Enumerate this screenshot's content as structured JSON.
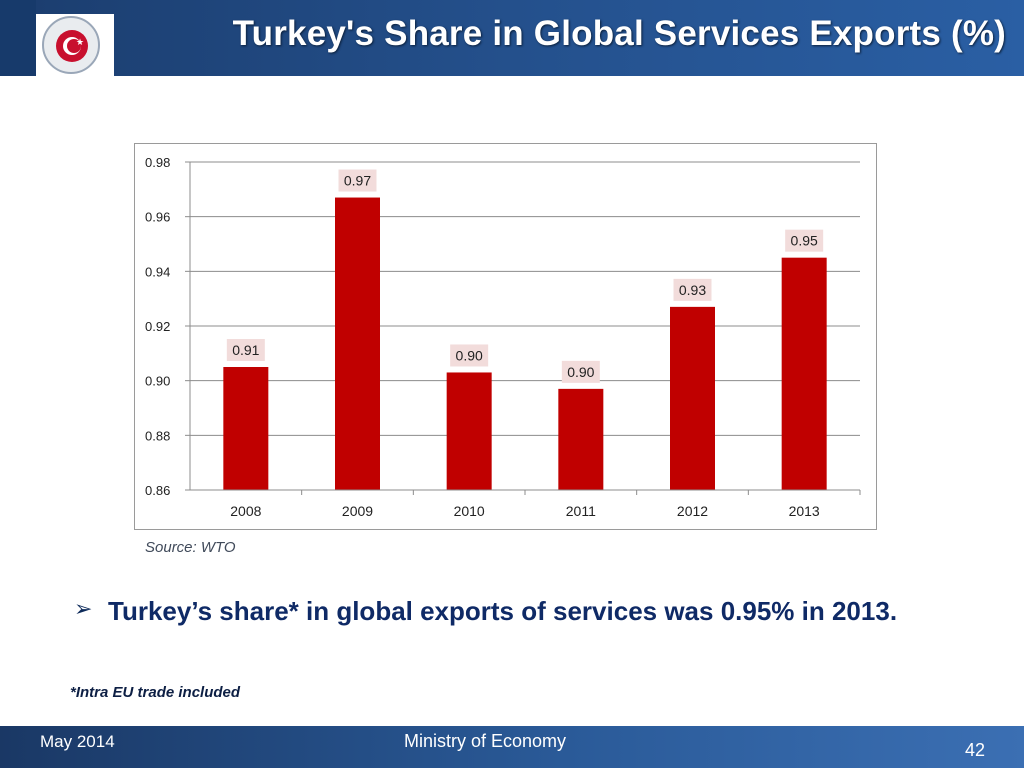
{
  "header": {
    "title": "Turkey's Share in Global Services Exports (%)"
  },
  "logo": {
    "text": "REPUBLIC OF TURKEY · MINISTRY OF ECONOMY"
  },
  "chart_data": {
    "type": "bar",
    "categories": [
      "2008",
      "2009",
      "2010",
      "2011",
      "2012",
      "2013"
    ],
    "values": [
      0.905,
      0.967,
      0.903,
      0.897,
      0.927,
      0.945
    ],
    "data_labels": [
      "0.91",
      "0.97",
      "0.90",
      "0.90",
      "0.93",
      "0.95"
    ],
    "y_ticks": [
      "0.86",
      "0.88",
      "0.90",
      "0.92",
      "0.94",
      "0.96",
      "0.98"
    ],
    "ylim": [
      0.86,
      0.98
    ],
    "title": "",
    "xlabel": "",
    "ylabel": "",
    "grid": true,
    "bar_color": "#c00000",
    "label_bg": "#f2dcdb"
  },
  "source": "Source: WTO",
  "bullet": {
    "text": "Turkey’s share* in global exports of services was 0.95% in 2013."
  },
  "footnote": "*Intra EU trade included",
  "footer": {
    "date": "May 2014",
    "organization": "Ministry of Economy",
    "page": "42"
  }
}
